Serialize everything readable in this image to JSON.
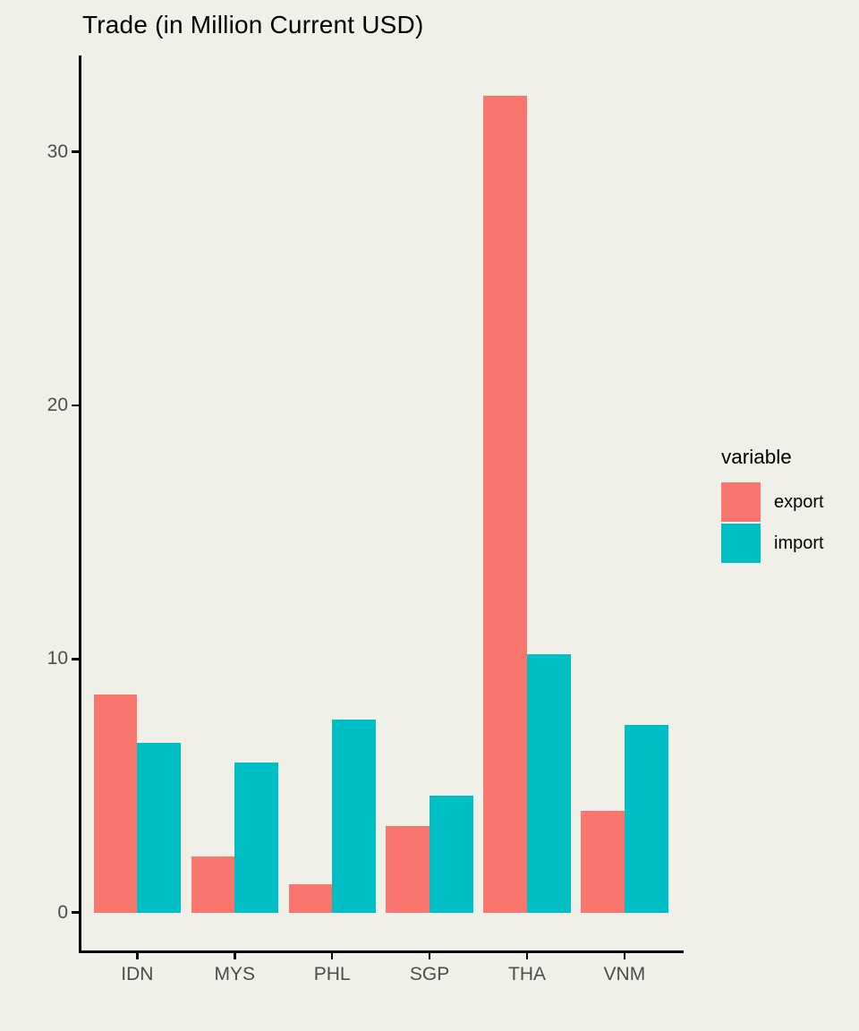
{
  "chart_data": {
    "type": "bar",
    "title": "Trade (in Million Current USD)",
    "categories": [
      "IDN",
      "MYS",
      "PHL",
      "SGP",
      "THA",
      "VNM"
    ],
    "series": [
      {
        "name": "export",
        "color": "#F8766D",
        "values": [
          8.6,
          2.2,
          1.1,
          3.4,
          32.2,
          4.0
        ]
      },
      {
        "name": "import",
        "color": "#00BFC4",
        "values": [
          6.7,
          5.9,
          7.6,
          4.6,
          10.2,
          7.4
        ]
      }
    ],
    "xlabel": "",
    "ylabel": "",
    "yticks": [
      0,
      10,
      20,
      30
    ],
    "ylim": [
      0,
      33.8
    ],
    "grid": false,
    "legend_title": "variable",
    "legend_position": "right",
    "background_color": "#F0F0E9",
    "axis_text_color": "#4D4D4D",
    "axis_line_color": "#000000"
  }
}
